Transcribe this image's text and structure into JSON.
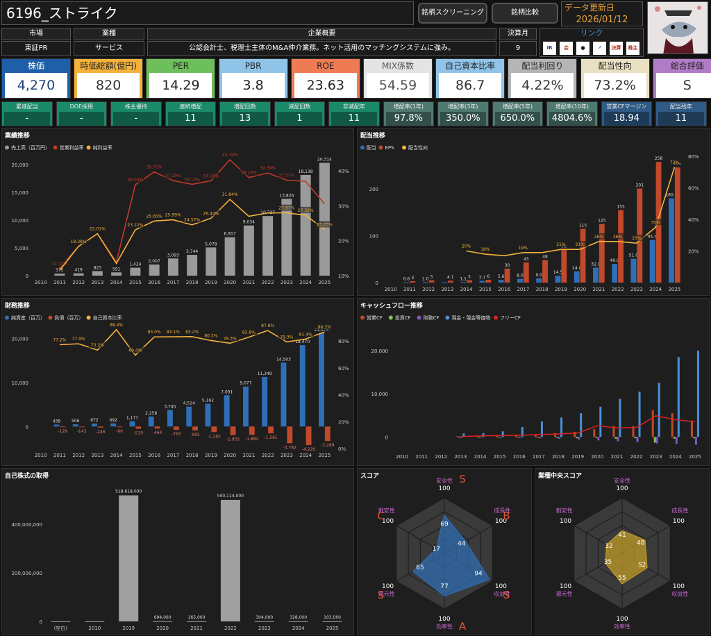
{
  "header": {
    "title": "6196_ストライク",
    "btn_screening": "銘柄スクリーニング",
    "btn_compare": "銘柄比較",
    "update_label": "データ更新日",
    "update_date": "2026/01/12"
  },
  "info": {
    "market_label": "市場",
    "market_value": "東証PR",
    "industry_label": "業種",
    "industry_value": "サービス",
    "summary_label": "企業概要",
    "summary_value": "公認会計士、税理士主体のM&A仲介業務。ネット活用のマッチングシステムに強み。",
    "fiscal_label": "決算月",
    "fiscal_value": "9",
    "link_label": "リンク",
    "link_icons": [
      "IR",
      "会",
      "●",
      "↗",
      "決算",
      "株主優待"
    ]
  },
  "kpis": [
    {
      "label": "株価",
      "value": "4,270",
      "head": "#1f5fa8",
      "body": "#1f5fa8",
      "fg": "#ffffff",
      "lfg": "#ffffff"
    },
    {
      "label": "時価総額(億円)",
      "value": "820",
      "head": "#f4b23c",
      "body": "#f4b23c",
      "fg": "#333333",
      "lfg": "#222222"
    },
    {
      "label": "PER",
      "value": "14.29",
      "head": "#6cbf5a",
      "body": "#6cbf5a",
      "fg": "#222222",
      "lfg": "#222222"
    },
    {
      "label": "PBR",
      "value": "3.8",
      "head": "#8fc3e8",
      "body": "#8fc3e8",
      "fg": "#222222",
      "lfg": "#222222"
    },
    {
      "label": "ROE",
      "value": "23.63",
      "head": "#ef7b55",
      "body": "#ef7b55",
      "fg": "#222222",
      "lfg": "#222222"
    },
    {
      "label": "MIX係数",
      "value": "54.59",
      "head": "#e4e4e4",
      "body": "#e4e4e4",
      "fg": "#555555",
      "lfg": "#555555"
    },
    {
      "label": "自己資本比率",
      "value": "86.7",
      "head": "#8fc3e8",
      "body": "#8fc3e8",
      "fg": "#333333",
      "lfg": "#222222"
    },
    {
      "label": "配当利回り",
      "value": "4.22%",
      "head": "#b5b5b5",
      "body": "#b5b5b5",
      "fg": "#333333",
      "lfg": "#222222"
    },
    {
      "label": "配当性向",
      "value": "73.2%",
      "head": "#e9dfc1",
      "body": "#e9dfc1",
      "fg": "#333333",
      "lfg": "#222222"
    },
    {
      "label": "総合評価",
      "value": "S",
      "head": "#b07cc6",
      "body": "#b07cc6",
      "fg": "#333333",
      "lfg": "#222222"
    }
  ],
  "stats": [
    {
      "label": "累進配当",
      "value": "-",
      "color": "#1a8a6a"
    },
    {
      "label": "DOE採用",
      "value": "-",
      "color": "#1a8a6a"
    },
    {
      "label": "株主優待",
      "value": "-",
      "color": "#1a8a6a"
    },
    {
      "label": "連続増配",
      "value": "11",
      "color": "#1a8a6a"
    },
    {
      "label": "増配回数",
      "value": "13",
      "color": "#1a8a6a"
    },
    {
      "label": "減配回数",
      "value": "1",
      "color": "#1a8a6a"
    },
    {
      "label": "非減配年",
      "value": "11",
      "color": "#1a8a6a"
    },
    {
      "label": "増配率(1年)",
      "value": "97.8%",
      "color": "#4f7a72"
    },
    {
      "label": "増配率(3年)",
      "value": "350.0%",
      "color": "#4f7a72"
    },
    {
      "label": "増配率(5年)",
      "value": "650.0%",
      "color": "#4f7a72"
    },
    {
      "label": "増配率(10年)",
      "value": "4804.6%",
      "color": "#4f7a72"
    },
    {
      "label": "営業CFマージン",
      "value": "18.94",
      "color": "#2f5b86"
    },
    {
      "label": "配当残年",
      "value": "11",
      "color": "#2f5b86"
    }
  ],
  "panels": {
    "perf": "業績推移",
    "div": "配当推移",
    "fin": "財務推移",
    "cf": "キャッシュフロー推移",
    "buyback": "自己株式の取得",
    "score": "スコア",
    "ind_score": "業種中央スコア"
  },
  "chart_data": [
    {
      "id": "perf",
      "type": "bar",
      "title": "業績推移",
      "categories": [
        "2010",
        "2011",
        "2012",
        "2013",
        "2014",
        "2015",
        "2016",
        "2017",
        "2018",
        "2019",
        "2020",
        "2021",
        "2022",
        "2023",
        "2024",
        "2025"
      ],
      "ylim": [
        0,
        22000
      ],
      "ytick_labels": [
        "0",
        "5,000",
        "10,000",
        "15,000",
        "20,000"
      ],
      "ytick_values": [
        0,
        5000,
        10000,
        15000,
        20000
      ],
      "y2lim": [
        10,
        45
      ],
      "y2tick_labels": [
        "10%",
        "20%",
        "30%",
        "40%"
      ],
      "series": [
        {
          "name": "売上高（百万円）",
          "kind": "bar",
          "color": "#9a9a9a",
          "values": [
            null,
            375,
            419,
            823,
            591,
            1424,
            2007,
            3093,
            3744,
            5078,
            6917,
            9034,
            10727,
            13826,
            18138,
            20314
          ],
          "labels": [
            "",
            "375",
            "419",
            "823",
            "591",
            "1,424",
            "2,007",
            "3,093",
            "3,744",
            "5,078",
            "6,917",
            "9,034",
            "10,727",
            "13,826",
            "18,138",
            "20,314"
          ]
        },
        {
          "name": "営業利益率",
          "kind": "line",
          "axis": "y2",
          "color": "#c0392b",
          "values": [
            null,
            12.13,
            18.39,
            22.01,
            13.9,
            36.03,
            39.71,
            37.2,
            36.16,
            37.16,
            43.19,
            38.1,
            39.39,
            37.37,
            37.0,
            30.57
          ],
          "labels": [
            "",
            "12.13%",
            "",
            "",
            "",
            "36.03%",
            "39.71%",
            "37.20%",
            "36.16%",
            "37.16%",
            "43.19%",
            "38.10%",
            "39.39%",
            "37.37%",
            "",
            ""
          ]
        },
        {
          "name": "純利益率",
          "kind": "line",
          "axis": "y2",
          "color": "#f4b23c",
          "values": [
            null,
            11.5,
            18.39,
            22.01,
            13.5,
            23.12,
            25.65,
            25.99,
            24.57,
            26.44,
            31.84,
            27.0,
            27.97,
            27.97,
            27.32,
            23.23
          ],
          "labels": [
            "",
            "",
            "18.39%",
            "22.01%",
            "",
            "23.12%",
            "25.65%",
            "25.99%",
            "24.57%",
            "26.44%",
            "31.84%",
            "",
            "",
            "27.97%",
            "27.32%",
            "23.23%"
          ]
        }
      ]
    },
    {
      "id": "div",
      "type": "bar",
      "title": "配当推移",
      "categories": [
        "2010",
        "2011",
        "2012",
        "2013",
        "2014",
        "2015",
        "2016",
        "2017",
        "2018",
        "2019",
        "2020",
        "2021",
        "2022",
        "2023",
        "2024",
        "2025"
      ],
      "ylim": [
        0,
        270
      ],
      "ytick_labels": [
        "0",
        "100",
        "200"
      ],
      "ytick_values": [
        0,
        100,
        200
      ],
      "y2lim": [
        0,
        80
      ],
      "y2tick_labels": [
        "20%",
        "40%",
        "60%",
        "80%"
      ],
      "y2tick_values": [
        20,
        40,
        60,
        80
      ],
      "series": [
        {
          "name": "配当",
          "kind": "bar",
          "color": "#2f6fb8",
          "values": [
            null,
            0.6,
            1.0,
            1.0,
            1.1,
            3.7,
            5.6,
            8.0,
            9.0,
            14.5,
            24.0,
            32.0,
            40.0,
            51.0,
            91.0,
            180.0
          ],
          "labels": [
            "",
            "0.6",
            "1.0",
            "",
            "1.1",
            "3.7",
            "5.6",
            "8.0",
            "9.0",
            "14.5",
            "24.0",
            "32.0",
            "40.0",
            "51.0",
            "91.0",
            "180.0"
          ]
        },
        {
          "name": "EPS",
          "kind": "bar",
          "color": "#c0492b",
          "values": [
            null,
            3,
            5,
            4.1,
            5,
            6,
            30,
            43,
            48,
            70,
            115,
            125,
            155,
            201,
            258,
            246
          ],
          "labels": [
            "",
            "3",
            "5",
            "4.1",
            "5",
            "6",
            "30",
            "43",
            "48",
            "70",
            "115",
            "125",
            "155",
            "201",
            "258",
            "246"
          ]
        },
        {
          "name": "配当性向",
          "kind": "line",
          "axis": "y2",
          "color": "#f4b23c",
          "values": [
            null,
            null,
            null,
            null,
            20,
            18,
            17,
            19,
            19,
            21,
            21,
            26,
            26,
            25,
            35,
            73
          ],
          "labels": [
            "",
            "",
            "",
            "",
            "20%",
            "18%",
            "",
            "19%",
            "",
            "21%",
            "21%",
            "26%",
            "26%",
            "25%",
            "35%",
            "73%"
          ]
        }
      ]
    },
    {
      "id": "fin",
      "type": "bar",
      "title": "財務推移",
      "categories": [
        "2010",
        "2011",
        "2012",
        "2013",
        "2014",
        "2015",
        "2016",
        "2017",
        "2018",
        "2019",
        "2020",
        "2021",
        "2022",
        "2023",
        "2024",
        "2025"
      ],
      "ylim": [
        -5000,
        24000
      ],
      "ytick_labels": [
        "0",
        "10,000",
        "20,000"
      ],
      "ytick_values": [
        0,
        10000,
        20000
      ],
      "y2lim": [
        0,
        95
      ],
      "y2tick_labels": [
        "0%",
        "20%",
        "40%",
        "60%",
        "80%"
      ],
      "y2tick_values": [
        0,
        20,
        40,
        60,
        80
      ],
      "series": [
        {
          "name": "純資産（百万）",
          "kind": "bar",
          "color": "#2f6fb8",
          "values": [
            null,
            438,
            506,
            672,
            692,
            1177,
            2258,
            3745,
            4514,
            5162,
            7091,
            9077,
            11249,
            14503,
            18470,
            21175
          ],
          "labels": [
            "",
            "438",
            "506",
            "672",
            "692",
            "1,177",
            "2,258",
            "3,745",
            "4,514",
            "5,162",
            "7,091",
            "9,077",
            "11,249",
            "14,503",
            "18,470",
            "21,175"
          ]
        },
        {
          "name": "負債（百万）",
          "kind": "bar",
          "color": "#c0492b",
          "values": [
            null,
            -129,
            -143,
            -246,
            -90,
            -519,
            -464,
            -763,
            -905,
            -1265,
            -1955,
            -1882,
            -1561,
            -3782,
            -4220,
            -3289
          ],
          "labels": [
            "",
            "-129",
            "-143",
            "-246",
            "-90",
            "-519",
            "-464",
            "-763",
            "-905",
            "-1,265",
            "-1,955",
            "-1,882",
            "-1,561",
            "-3,782",
            "-4,220",
            "-3,289"
          ]
        },
        {
          "name": "自己資本比率",
          "kind": "line",
          "axis": "y2",
          "color": "#f4b23c",
          "values": [
            null,
            77.2,
            77.9,
            73.2,
            88.4,
            69.4,
            83.0,
            83.1,
            83.2,
            80.3,
            78.3,
            82.8,
            87.8,
            79.3,
            81.4,
            86.7
          ],
          "labels": [
            "",
            "77.2%",
            "77.9%",
            "73.2%",
            "88.4%",
            "69.4%",
            "83.0%",
            "83.1%",
            "83.2%",
            "80.3%",
            "78.3%",
            "82.8%",
            "87.8%",
            "79.3%",
            "81.4%",
            "86.7%"
          ]
        }
      ]
    },
    {
      "id": "cf",
      "type": "bar",
      "title": "キャッシュフロー推移",
      "categories": [
        "2010",
        "2011",
        "2012",
        "2013",
        "2014",
        "2015",
        "2016",
        "2017",
        "2018",
        "2019",
        "2020",
        "2021",
        "2022",
        "2023",
        "2024",
        "2025"
      ],
      "ylim": [
        -3000,
        24000
      ],
      "ytick_labels": [
        "0",
        "10,000",
        "20,000"
      ],
      "ytick_values": [
        0,
        10000,
        20000
      ],
      "series": [
        {
          "name": "営業CF",
          "kind": "bar",
          "color": "#c0492b",
          "values": [
            null,
            null,
            null,
            200,
            300,
            400,
            500,
            700,
            900,
            1200,
            1800,
            2500,
            2500,
            6200,
            5500,
            3800
          ]
        },
        {
          "name": "投資CF",
          "kind": "bar",
          "color": "#8bc34a",
          "values": [
            null,
            null,
            null,
            -100,
            -50,
            -80,
            -100,
            -150,
            -200,
            -300,
            -200,
            -400,
            -300,
            -1300,
            -400,
            -300
          ]
        },
        {
          "name": "財務CF",
          "kind": "bar",
          "color": "#7e57c2",
          "values": [
            null,
            null,
            null,
            -50,
            -50,
            -100,
            -200,
            -300,
            -400,
            -600,
            -800,
            -1000,
            -1200,
            -1500,
            -1600,
            -1800
          ]
        },
        {
          "name": "現金・現金等価物",
          "kind": "bar",
          "color": "#4a90d9",
          "values": [
            null,
            null,
            null,
            800,
            900,
            1300,
            2300,
            3600,
            4500,
            5500,
            7000,
            8800,
            10500,
            12500,
            18500,
            20000
          ]
        },
        {
          "name": "フリーCF",
          "kind": "line",
          "color": "#e02020",
          "values": [
            null,
            null,
            null,
            100,
            250,
            320,
            400,
            550,
            700,
            900,
            2600,
            2100,
            2200,
            4900,
            4000,
            3500
          ]
        }
      ]
    },
    {
      "id": "buyback",
      "type": "bar",
      "title": "自己株式の取得",
      "categories": [
        "(空白)",
        "2010",
        "2019",
        "2020",
        "2021",
        "2022",
        "2023",
        "2024",
        "2025"
      ],
      "ylim": [
        0,
        560000000
      ],
      "ytick_labels": [
        "0",
        "200,000,000",
        "400,000,000"
      ],
      "ytick_values": [
        0,
        200000000,
        400000000
      ],
      "series": [
        {
          "name": "取得額",
          "kind": "bar",
          "color": "#a0a0a0",
          "values": [
            0,
            0,
            518618000,
            694000,
            165000,
            500114000,
            304000,
            328000,
            103000
          ],
          "labels": [
            "",
            "",
            "518,618,000",
            "694,000",
            "165,000",
            "500,114,000",
            "304,000",
            "328,000",
            "103,000"
          ]
        }
      ]
    },
    {
      "id": "score",
      "type": "radar",
      "title": "スコア",
      "axes": [
        "安全性",
        "成長性",
        "収益性",
        "効率性",
        "還元性",
        "割安性"
      ],
      "values": [
        69,
        44,
        94,
        77,
        65,
        17
      ],
      "grades": [
        "S",
        "B",
        "S",
        "A",
        "S",
        "C"
      ],
      "max": 100,
      "color": "#2f6fb8"
    },
    {
      "id": "ind_score",
      "type": "radar",
      "title": "業種中央スコア",
      "axes": [
        "安全性",
        "成長性",
        "収益性",
        "効率性",
        "還元性",
        "割安性"
      ],
      "values": [
        41,
        48,
        52,
        55,
        35,
        32
      ],
      "max": 100,
      "color": "#c9a227"
    }
  ]
}
